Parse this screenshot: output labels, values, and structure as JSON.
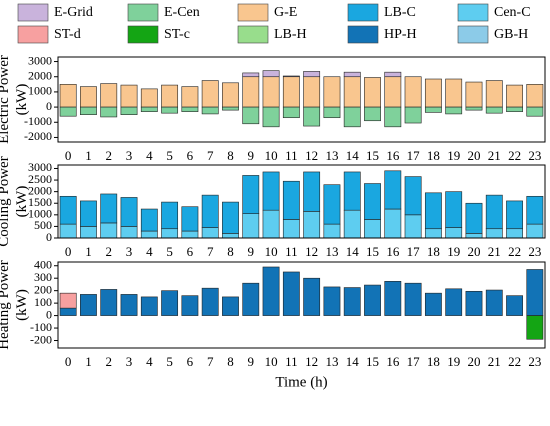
{
  "chart_data": [
    {
      "type": "bar",
      "stacked": true,
      "ylabel": [
        "Electric Power",
        "(kW)"
      ],
      "categories": [
        "0",
        "1",
        "2",
        "3",
        "4",
        "5",
        "6",
        "7",
        "8",
        "9",
        "10",
        "11",
        "12",
        "13",
        "14",
        "15",
        "16",
        "17",
        "18",
        "19",
        "20",
        "21",
        "22",
        "23"
      ],
      "ylim": [
        -2300,
        3300
      ],
      "yticks": [
        -2000,
        -1000,
        0,
        1000,
        2000,
        3000
      ],
      "series": [
        {
          "name": "G-E",
          "color": "#f9c68f",
          "values": [
            1500,
            1350,
            1550,
            1450,
            1200,
            1450,
            1350,
            1750,
            1600,
            2000,
            2000,
            2000,
            2000,
            2000,
            2000,
            1950,
            2000,
            2000,
            1850,
            1850,
            1650,
            1750,
            1450,
            1500
          ]
        },
        {
          "name": "E-Grid",
          "color": "#c9b3dc",
          "values": [
            0,
            0,
            0,
            0,
            0,
            0,
            0,
            0,
            0,
            250,
            400,
            50,
            350,
            0,
            300,
            0,
            300,
            0,
            0,
            0,
            0,
            0,
            0,
            0
          ]
        },
        {
          "name": "E-Cen",
          "color": "#7fd19b",
          "values": [
            -600,
            -500,
            -650,
            -500,
            -300,
            -400,
            -300,
            -450,
            -200,
            -1100,
            -1300,
            -700,
            -1250,
            -700,
            -1300,
            -900,
            -1300,
            -1050,
            -350,
            -450,
            -200,
            -400,
            -300,
            -600
          ]
        }
      ]
    },
    {
      "type": "bar",
      "stacked": true,
      "ylabel": [
        "Cooling Power",
        "(kW)"
      ],
      "categories": [
        "0",
        "1",
        "2",
        "3",
        "4",
        "5",
        "6",
        "7",
        "8",
        "9",
        "10",
        "11",
        "12",
        "13",
        "14",
        "15",
        "16",
        "17",
        "18",
        "19",
        "20",
        "21",
        "22",
        "23"
      ],
      "ylim": [
        0,
        3150
      ],
      "yticks": [
        0,
        500,
        1000,
        1500,
        2000,
        2500,
        3000
      ],
      "series": [
        {
          "name": "Cen-C",
          "color": "#5ecdf0",
          "values": [
            600,
            500,
            650,
            500,
            300,
            400,
            300,
            450,
            200,
            1050,
            1200,
            800,
            1150,
            600,
            1200,
            800,
            1250,
            1000,
            400,
            450,
            200,
            400,
            400,
            600
          ]
        },
        {
          "name": "LB-C",
          "color": "#1aa7e0",
          "values": [
            1200,
            1100,
            1250,
            1250,
            950,
            1150,
            1050,
            1400,
            1350,
            1650,
            1650,
            1650,
            1700,
            1700,
            1650,
            1550,
            1650,
            1650,
            1550,
            1550,
            1300,
            1450,
            1200,
            1200
          ]
        }
      ]
    },
    {
      "type": "bar",
      "stacked": true,
      "ylabel": [
        "Heating Power",
        "(kW)"
      ],
      "xlabel": "Time (h)",
      "categories": [
        "0",
        "1",
        "2",
        "3",
        "4",
        "5",
        "6",
        "7",
        "8",
        "9",
        "10",
        "11",
        "12",
        "13",
        "14",
        "15",
        "16",
        "17",
        "18",
        "19",
        "20",
        "21",
        "22",
        "23"
      ],
      "ylim": [
        -260,
        430
      ],
      "yticks": [
        -200,
        -100,
        0,
        100,
        200,
        300,
        400
      ],
      "series": [
        {
          "name": "HP-H",
          "color": "#1273b6",
          "values": [
            60,
            170,
            210,
            170,
            150,
            200,
            160,
            220,
            150,
            260,
            390,
            350,
            300,
            230,
            225,
            245,
            275,
            260,
            180,
            215,
            195,
            205,
            160,
            370
          ]
        },
        {
          "name": "ST-d",
          "color": "#f7a0a0",
          "values": [
            120,
            0,
            0,
            0,
            0,
            0,
            0,
            0,
            0,
            0,
            0,
            0,
            0,
            0,
            0,
            0,
            0,
            0,
            0,
            0,
            0,
            0,
            0,
            0
          ]
        },
        {
          "name": "GB-H",
          "color": "#8ccbe8",
          "values": [
            0,
            0,
            0,
            0,
            0,
            0,
            0,
            0,
            0,
            0,
            0,
            0,
            0,
            0,
            0,
            0,
            0,
            0,
            0,
            0,
            0,
            0,
            0,
            0
          ]
        },
        {
          "name": "LB-H",
          "color": "#98dd8c",
          "values": [
            0,
            0,
            0,
            0,
            0,
            0,
            0,
            0,
            0,
            0,
            0,
            0,
            0,
            0,
            0,
            0,
            0,
            0,
            0,
            0,
            0,
            0,
            0,
            0
          ]
        },
        {
          "name": "ST-c",
          "color": "#14a514",
          "values": [
            0,
            0,
            0,
            0,
            0,
            0,
            0,
            0,
            0,
            0,
            0,
            0,
            0,
            0,
            0,
            0,
            0,
            0,
            0,
            0,
            0,
            0,
            0,
            -190
          ]
        }
      ]
    }
  ]
}
